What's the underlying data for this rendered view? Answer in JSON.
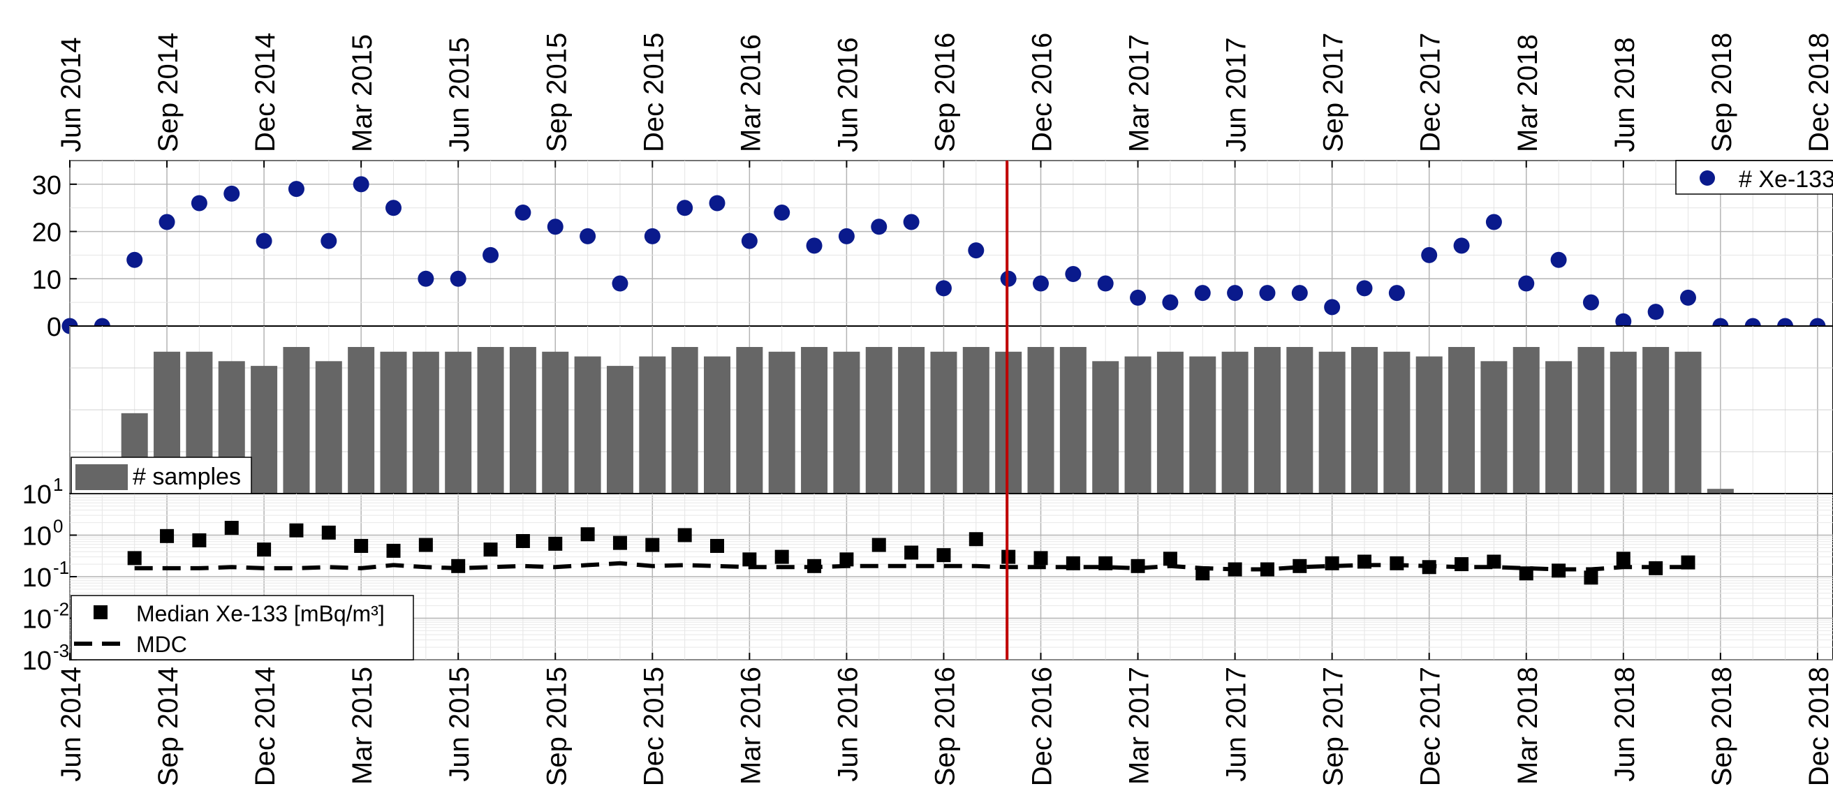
{
  "chart_data": [
    {
      "type": "scatter",
      "panel": "top",
      "ylim": [
        0,
        35
      ],
      "yticks": [
        "0",
        "10",
        "20",
        "30"
      ],
      "grid": true,
      "legend_position": "top-right",
      "series": [
        {
          "name": "# Xe-133",
          "color": "#0a1a8c",
          "marker": "circle",
          "points": [
            [
              "2014-06",
              0
            ],
            [
              "2014-07",
              0
            ],
            [
              "2014-08",
              14
            ],
            [
              "2014-09",
              22
            ],
            [
              "2014-10",
              26
            ],
            [
              "2014-11",
              28
            ],
            [
              "2014-12",
              18
            ],
            [
              "2015-01",
              29
            ],
            [
              "2015-02",
              18
            ],
            [
              "2015-03",
              30
            ],
            [
              "2015-04",
              25
            ],
            [
              "2015-05",
              10
            ],
            [
              "2015-06",
              10
            ],
            [
              "2015-07",
              15
            ],
            [
              "2015-08",
              24
            ],
            [
              "2015-09",
              21
            ],
            [
              "2015-10",
              19
            ],
            [
              "2015-11",
              9
            ],
            [
              "2015-12",
              19
            ],
            [
              "2016-01",
              25
            ],
            [
              "2016-02",
              26
            ],
            [
              "2016-03",
              18
            ],
            [
              "2016-04",
              24
            ],
            [
              "2016-05",
              17
            ],
            [
              "2016-06",
              19
            ],
            [
              "2016-07",
              21
            ],
            [
              "2016-08",
              22
            ],
            [
              "2016-09",
              8
            ],
            [
              "2016-10",
              16
            ],
            [
              "2016-11",
              10
            ],
            [
              "2016-12",
              9
            ],
            [
              "2017-01",
              11
            ],
            [
              "2017-02",
              9
            ],
            [
              "2017-03",
              6
            ],
            [
              "2017-04",
              5
            ],
            [
              "2017-05",
              7
            ],
            [
              "2017-06",
              7
            ],
            [
              "2017-07",
              7
            ],
            [
              "2017-08",
              7
            ],
            [
              "2017-09",
              4
            ],
            [
              "2017-10",
              8
            ],
            [
              "2017-11",
              7
            ],
            [
              "2017-12",
              15
            ],
            [
              "2018-01",
              17
            ],
            [
              "2018-02",
              22
            ],
            [
              "2018-03",
              9
            ],
            [
              "2018-04",
              14
            ],
            [
              "2018-05",
              5
            ],
            [
              "2018-06",
              1
            ],
            [
              "2018-07",
              3
            ],
            [
              "2018-08",
              6
            ],
            [
              "2018-09",
              0
            ],
            [
              "2018-10",
              0
            ],
            [
              "2018-11",
              0
            ],
            [
              "2018-12",
              0
            ]
          ]
        }
      ]
    },
    {
      "type": "bar",
      "panel": "middle",
      "ylim": [
        0,
        31
      ],
      "grid": true,
      "legend_position": "bottom-left",
      "series": [
        {
          "name": "# samples",
          "color": "#666666",
          "points": [
            [
              "2014-08",
              17
            ],
            [
              "2014-09",
              30
            ],
            [
              "2014-10",
              30
            ],
            [
              "2014-11",
              28
            ],
            [
              "2014-12",
              27
            ],
            [
              "2015-01",
              31
            ],
            [
              "2015-02",
              28
            ],
            [
              "2015-03",
              31
            ],
            [
              "2015-04",
              30
            ],
            [
              "2015-05",
              30
            ],
            [
              "2015-06",
              30
            ],
            [
              "2015-07",
              31
            ],
            [
              "2015-08",
              31
            ],
            [
              "2015-09",
              30
            ],
            [
              "2015-10",
              29
            ],
            [
              "2015-11",
              27
            ],
            [
              "2015-12",
              29
            ],
            [
              "2016-01",
              31
            ],
            [
              "2016-02",
              29
            ],
            [
              "2016-03",
              31
            ],
            [
              "2016-04",
              30
            ],
            [
              "2016-05",
              31
            ],
            [
              "2016-06",
              30
            ],
            [
              "2016-07",
              31
            ],
            [
              "2016-08",
              31
            ],
            [
              "2016-09",
              30
            ],
            [
              "2016-10",
              31
            ],
            [
              "2016-11",
              30
            ],
            [
              "2016-12",
              31
            ],
            [
              "2017-01",
              31
            ],
            [
              "2017-02",
              28
            ],
            [
              "2017-03",
              29
            ],
            [
              "2017-04",
              30
            ],
            [
              "2017-05",
              29
            ],
            [
              "2017-06",
              30
            ],
            [
              "2017-07",
              31
            ],
            [
              "2017-08",
              31
            ],
            [
              "2017-09",
              30
            ],
            [
              "2017-10",
              31
            ],
            [
              "2017-11",
              30
            ],
            [
              "2017-12",
              29
            ],
            [
              "2018-01",
              31
            ],
            [
              "2018-02",
              28
            ],
            [
              "2018-03",
              31
            ],
            [
              "2018-04",
              28
            ],
            [
              "2018-05",
              31
            ],
            [
              "2018-06",
              30
            ],
            [
              "2018-07",
              31
            ],
            [
              "2018-08",
              30
            ],
            [
              "2018-09",
              1
            ]
          ]
        }
      ]
    },
    {
      "type": "line",
      "panel": "bottom",
      "yscale": "log",
      "ylim": [
        0.001,
        10
      ],
      "yticks": [
        {
          "base": "10",
          "exp": "1"
        },
        {
          "base": "10",
          "exp": "0"
        },
        {
          "base": "10",
          "exp": "-1"
        },
        {
          "base": "10",
          "exp": "-2"
        },
        {
          "base": "10",
          "exp": "-3"
        }
      ],
      "grid": true,
      "legend_position": "bottom-left",
      "series": [
        {
          "name": "Median Xe-133 [mBq/m³]",
          "color": "#000000",
          "marker": "square",
          "points": [
            [
              "2014-08",
              0.28
            ],
            [
              "2014-09",
              0.95
            ],
            [
              "2014-10",
              0.75
            ],
            [
              "2014-11",
              1.5
            ],
            [
              "2014-12",
              0.45
            ],
            [
              "2015-01",
              1.3
            ],
            [
              "2015-02",
              1.15
            ],
            [
              "2015-03",
              0.55
            ],
            [
              "2015-04",
              0.42
            ],
            [
              "2015-05",
              0.58
            ],
            [
              "2015-06",
              0.18
            ],
            [
              "2015-07",
              0.45
            ],
            [
              "2015-08",
              0.72
            ],
            [
              "2015-09",
              0.62
            ],
            [
              "2015-10",
              1.05
            ],
            [
              "2015-11",
              0.65
            ],
            [
              "2015-12",
              0.58
            ],
            [
              "2016-01",
              1.0
            ],
            [
              "2016-02",
              0.55
            ],
            [
              "2016-03",
              0.26
            ],
            [
              "2016-04",
              0.3
            ],
            [
              "2016-05",
              0.18
            ],
            [
              "2016-06",
              0.26
            ],
            [
              "2016-07",
              0.58
            ],
            [
              "2016-08",
              0.38
            ],
            [
              "2016-09",
              0.33
            ],
            [
              "2016-10",
              0.8
            ],
            [
              "2016-11",
              0.3
            ],
            [
              "2016-12",
              0.28
            ],
            [
              "2017-01",
              0.21
            ],
            [
              "2017-02",
              0.21
            ],
            [
              "2017-03",
              0.18
            ],
            [
              "2017-04",
              0.27
            ],
            [
              "2017-05",
              0.12
            ],
            [
              "2017-06",
              0.15
            ],
            [
              "2017-07",
              0.15
            ],
            [
              "2017-08",
              0.18
            ],
            [
              "2017-09",
              0.21
            ],
            [
              "2017-10",
              0.23
            ],
            [
              "2017-11",
              0.21
            ],
            [
              "2017-12",
              0.17
            ],
            [
              "2018-01",
              0.2
            ],
            [
              "2018-02",
              0.23
            ],
            [
              "2018-03",
              0.12
            ],
            [
              "2018-04",
              0.14
            ],
            [
              "2018-05",
              0.095
            ],
            [
              "2018-06",
              0.27
            ],
            [
              "2018-07",
              0.16
            ],
            [
              "2018-08",
              0.22
            ]
          ]
        },
        {
          "name": "MDC",
          "color": "#000000",
          "line_style": "dashed",
          "points": [
            [
              "2014-08",
              0.16
            ],
            [
              "2014-09",
              0.16
            ],
            [
              "2014-10",
              0.16
            ],
            [
              "2014-11",
              0.17
            ],
            [
              "2014-12",
              0.16
            ],
            [
              "2015-01",
              0.16
            ],
            [
              "2015-02",
              0.17
            ],
            [
              "2015-03",
              0.16
            ],
            [
              "2015-04",
              0.19
            ],
            [
              "2015-05",
              0.17
            ],
            [
              "2015-06",
              0.16
            ],
            [
              "2015-07",
              0.17
            ],
            [
              "2015-08",
              0.18
            ],
            [
              "2015-09",
              0.17
            ],
            [
              "2015-10",
              0.19
            ],
            [
              "2015-11",
              0.21
            ],
            [
              "2015-12",
              0.18
            ],
            [
              "2016-01",
              0.19
            ],
            [
              "2016-02",
              0.18
            ],
            [
              "2016-03",
              0.17
            ],
            [
              "2016-04",
              0.17
            ],
            [
              "2016-05",
              0.17
            ],
            [
              "2016-06",
              0.18
            ],
            [
              "2016-07",
              0.18
            ],
            [
              "2016-08",
              0.18
            ],
            [
              "2016-09",
              0.18
            ],
            [
              "2016-10",
              0.18
            ],
            [
              "2016-11",
              0.17
            ],
            [
              "2016-12",
              0.17
            ],
            [
              "2017-01",
              0.17
            ],
            [
              "2017-02",
              0.17
            ],
            [
              "2017-03",
              0.16
            ],
            [
              "2017-04",
              0.18
            ],
            [
              "2017-05",
              0.16
            ],
            [
              "2017-06",
              0.15
            ],
            [
              "2017-07",
              0.15
            ],
            [
              "2017-08",
              0.17
            ],
            [
              "2017-09",
              0.18
            ],
            [
              "2017-10",
              0.19
            ],
            [
              "2017-11",
              0.19
            ],
            [
              "2017-12",
              0.18
            ],
            [
              "2018-01",
              0.17
            ],
            [
              "2018-02",
              0.17
            ],
            [
              "2018-03",
              0.16
            ],
            [
              "2018-04",
              0.15
            ],
            [
              "2018-05",
              0.15
            ],
            [
              "2018-06",
              0.17
            ],
            [
              "2018-07",
              0.17
            ],
            [
              "2018-08",
              0.17
            ]
          ]
        }
      ]
    }
  ],
  "x_axis": {
    "range": [
      "2014-06",
      "2018-12"
    ],
    "tick_dates": [
      "2014-06",
      "2014-09",
      "2014-12",
      "2015-03",
      "2015-06",
      "2015-09",
      "2015-12",
      "2016-03",
      "2016-06",
      "2016-09",
      "2016-12",
      "2017-03",
      "2017-06",
      "2017-09",
      "2017-12",
      "2018-03",
      "2018-06",
      "2018-09",
      "2018-12"
    ],
    "tick_labels": [
      "Jun 2014",
      "Sep 2014",
      "Dec 2014",
      "Mar 2015",
      "Jun 2015",
      "Sep 2015",
      "Dec 2015",
      "Mar 2016",
      "Jun 2016",
      "Sep 2016",
      "Dec 2016",
      "Mar 2017",
      "Jun 2017",
      "Sep 2017",
      "Dec 2017",
      "Mar 2018",
      "Jun 2018",
      "Sep 2018",
      "Dec 2018"
    ],
    "labels_on": [
      "top",
      "bottom"
    ]
  },
  "marker_line": {
    "date": "2016-11",
    "color": "#c00000"
  }
}
